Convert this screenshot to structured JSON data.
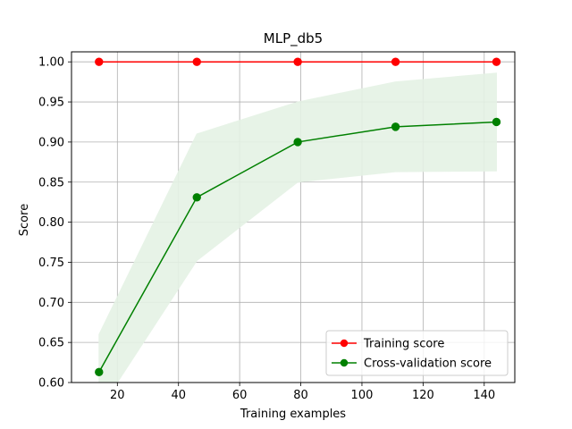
{
  "chart_data": {
    "type": "line",
    "title": "MLP_db5",
    "xlabel": "Training examples",
    "ylabel": "Score",
    "xlim": [
      5,
      150
    ],
    "ylim": [
      0.6,
      1.0125
    ],
    "xticks": [
      20,
      40,
      60,
      80,
      100,
      120,
      140
    ],
    "yticks": [
      0.6,
      0.65,
      0.7,
      0.75,
      0.8,
      0.85,
      0.9,
      0.95,
      1.0
    ],
    "grid": true,
    "legend_position": "lower-right",
    "x": [
      14,
      46,
      79,
      111,
      144
    ],
    "series": [
      {
        "name": "Training score",
        "color": "#ff0000",
        "values": [
          1.0,
          1.0,
          1.0,
          1.0,
          1.0
        ],
        "band_lower": [
          1.0,
          1.0,
          1.0,
          1.0,
          1.0
        ],
        "band_upper": [
          1.0,
          1.0,
          1.0,
          1.0,
          1.0
        ]
      },
      {
        "name": "Cross-validation score",
        "color": "#008000",
        "band_color": "#e5f2e5",
        "values": [
          0.613,
          0.831,
          0.9,
          0.919,
          0.925
        ],
        "band_lower": [
          0.565,
          0.752,
          0.85,
          0.863,
          0.864
        ],
        "band_upper": [
          0.66,
          0.91,
          0.95,
          0.975,
          0.986
        ]
      }
    ]
  }
}
